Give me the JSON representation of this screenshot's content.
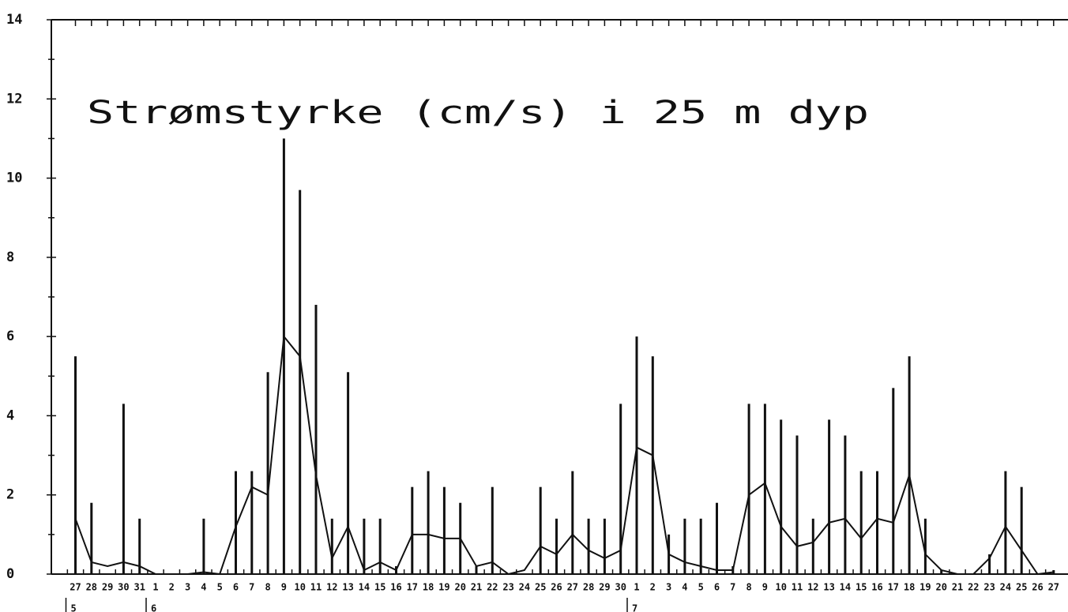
{
  "chart_data": {
    "type": "bar",
    "title": "Strømstyrke (cm/s) i 25 m dyp",
    "months": [
      {
        "label": "5",
        "days": [
          "27",
          "28",
          "29",
          "30",
          "31"
        ]
      },
      {
        "label": "6",
        "days": [
          "1",
          "2",
          "3",
          "4",
          "5",
          "6",
          "7",
          "8",
          "9",
          "10",
          "11",
          "12",
          "13",
          "14",
          "15",
          "16",
          "17",
          "18",
          "19",
          "20",
          "21",
          "22",
          "23",
          "24",
          "25",
          "26",
          "27",
          "28",
          "29",
          "30"
        ]
      },
      {
        "label": "7",
        "days": [
          "1",
          "2",
          "3",
          "4",
          "5",
          "6",
          "7",
          "8",
          "9",
          "10",
          "11",
          "12",
          "13",
          "14",
          "15",
          "16",
          "17",
          "18",
          "19",
          "20",
          "21",
          "22",
          "23",
          "24",
          "25",
          "26",
          "27"
        ]
      }
    ],
    "series": [
      {
        "type": "bar",
        "color": "#111111",
        "values": [
          5.5,
          1.8,
          0,
          4.3,
          1.4,
          0,
          0,
          0,
          1.4,
          0,
          2.6,
          2.6,
          5.1,
          11,
          9.7,
          6.8,
          1.4,
          5.1,
          1.4,
          1.4,
          0.2,
          2.2,
          2.6,
          2.2,
          1.8,
          0.2,
          2.2,
          0,
          0,
          2.2,
          1.4,
          2.6,
          1.4,
          1.4,
          4.3,
          6.0,
          5.5,
          1.0,
          1.4,
          1.4,
          1.8,
          0.2,
          4.3,
          4.3,
          3.9,
          3.5,
          1.4,
          3.9,
          3.5,
          2.6,
          2.6,
          4.7,
          5.5,
          1.4,
          0.1,
          0,
          0,
          0.5,
          2.6,
          2.2,
          0,
          0.1
        ]
      },
      {
        "type": "line",
        "color": "#111111",
        "values": [
          1.4,
          0.3,
          0.2,
          0.3,
          0.2,
          0,
          0,
          0,
          0.05,
          0,
          1.2,
          2.2,
          2.0,
          6.0,
          5.5,
          2.5,
          0.4,
          1.2,
          0.1,
          0.3,
          0.1,
          1.0,
          1.0,
          0.9,
          0.9,
          0.2,
          0.3,
          0,
          0.1,
          0.7,
          0.5,
          1.0,
          0.6,
          0.4,
          0.6,
          3.2,
          3.0,
          0.5,
          0.3,
          0.2,
          0.1,
          0.1,
          2.0,
          2.3,
          1.2,
          0.7,
          0.8,
          1.3,
          1.4,
          0.9,
          1.4,
          1.3,
          2.5,
          0.5,
          0.1,
          0,
          0,
          0.4,
          1.2,
          0.6,
          0,
          0.05
        ]
      }
    ],
    "ylim": [
      0,
      14
    ],
    "yticks": [
      0,
      2,
      4,
      6,
      8,
      10,
      12,
      14
    ]
  }
}
